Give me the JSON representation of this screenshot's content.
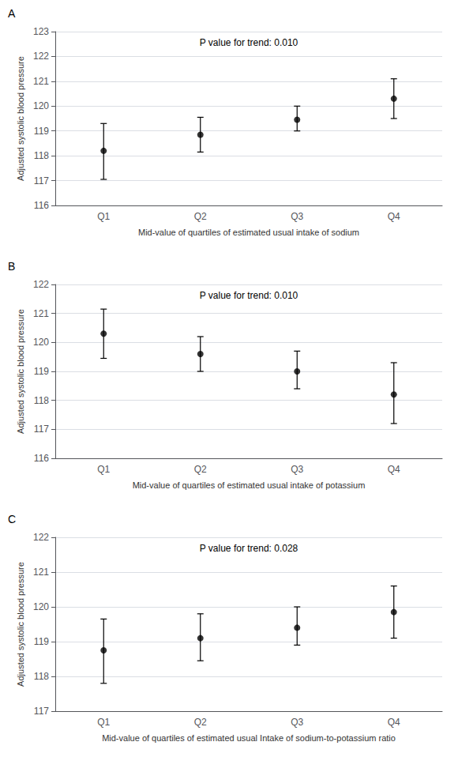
{
  "chart_data": [
    {
      "type": "scatter",
      "title": "A",
      "annotation": "P value for trend: 0.010",
      "xlabel": "Mid-value of quartiles of estimated usual intake of sodium",
      "ylabel": "Adjusted systolic blood pressure",
      "categories": [
        "Q1",
        "Q2",
        "Q3",
        "Q4"
      ],
      "values": [
        118.2,
        118.85,
        119.45,
        120.3
      ],
      "ci_lower": [
        117.05,
        118.15,
        119.0,
        119.5
      ],
      "ci_upper": [
        119.3,
        119.55,
        120.0,
        121.1
      ],
      "ylim": [
        116,
        123
      ],
      "yticks": [
        116,
        117,
        118,
        119,
        120,
        121,
        122,
        123
      ],
      "color": "#000000",
      "grid": true
    },
    {
      "type": "scatter",
      "title": "B",
      "annotation": "P value for trend: 0.010",
      "xlabel": "Mid-value of quartiles of estimated usual intake of potassium",
      "ylabel": "Adjusted systolic blood pressure",
      "categories": [
        "Q1",
        "Q2",
        "Q3",
        "Q4"
      ],
      "values": [
        120.3,
        119.6,
        119.0,
        118.2
      ],
      "ci_lower": [
        119.45,
        119.0,
        118.4,
        117.2
      ],
      "ci_upper": [
        121.15,
        120.2,
        119.7,
        119.3
      ],
      "ylim": [
        116,
        122
      ],
      "yticks": [
        116,
        117,
        118,
        119,
        120,
        121,
        122
      ],
      "color": "#000000",
      "grid": true
    },
    {
      "type": "scatter",
      "title": "C",
      "annotation": "P value for trend: 0.028",
      "xlabel": "Mid-value of quartiles of estimated usual Intake of sodium-to-potassium ratio",
      "ylabel": "Adjusted systolic blood pressure",
      "categories": [
        "Q1",
        "Q2",
        "Q3",
        "Q4"
      ],
      "values": [
        118.75,
        119.1,
        119.4,
        119.85
      ],
      "ci_lower": [
        117.8,
        118.45,
        118.9,
        119.1
      ],
      "ci_upper": [
        119.65,
        119.8,
        120.0,
        120.6
      ],
      "ylim": [
        117,
        122
      ],
      "yticks": [
        117,
        118,
        119,
        120,
        121,
        122
      ],
      "color": "#000000",
      "grid": true
    }
  ]
}
